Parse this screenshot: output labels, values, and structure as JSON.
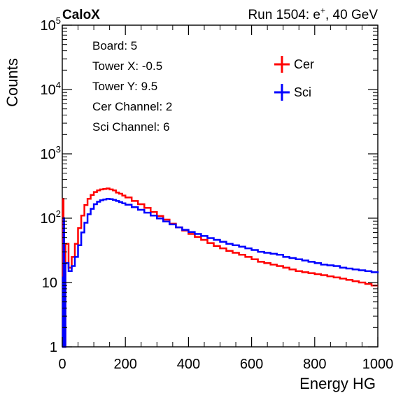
{
  "header": {
    "label_left": "CaloX",
    "run_prefix": "Run 1504: e",
    "run_superscript": "+",
    "run_suffix": ", 40 GeV"
  },
  "info_box": {
    "lines": [
      "Board: 5",
      "Tower X: -0.5",
      "Tower Y: 9.5",
      "Cer Channel: 2",
      "Sci Channel: 6"
    ]
  },
  "chart_data": {
    "type": "line",
    "style": "histogram-step",
    "xlabel": "Energy HG",
    "ylabel": "Counts",
    "xlim": [
      0,
      1000
    ],
    "ylim": [
      1,
      100000
    ],
    "yscale": "log",
    "grid": false,
    "legend_position": "top-right",
    "x_ticks": [
      0,
      200,
      400,
      600,
      800,
      1000
    ],
    "y_tick_values": [
      1,
      10,
      100,
      1000,
      10000,
      100000
    ],
    "y_tick_labels": [
      {
        "base": "1",
        "exp": ""
      },
      {
        "base": "10",
        "exp": ""
      },
      {
        "base": "10",
        "exp": "2"
      },
      {
        "base": "10",
        "exp": "3"
      },
      {
        "base": "10",
        "exp": "4"
      },
      {
        "base": "10",
        "exp": "5"
      }
    ],
    "series": [
      {
        "name": "Cer",
        "color": "#ff0000",
        "x": [
          0,
          2,
          4,
          6,
          10,
          20,
          30,
          40,
          50,
          60,
          70,
          80,
          90,
          100,
          110,
          120,
          130,
          140,
          150,
          160,
          170,
          180,
          190,
          200,
          220,
          240,
          260,
          280,
          300,
          320,
          340,
          360,
          380,
          400,
          420,
          440,
          460,
          480,
          500,
          520,
          540,
          560,
          580,
          600,
          620,
          640,
          660,
          680,
          700,
          720,
          740,
          760,
          780,
          800,
          820,
          840,
          860,
          880,
          900,
          920,
          940,
          960,
          980,
          1000
        ],
        "y": [
          1,
          200,
          90,
          1,
          40,
          17,
          25,
          40,
          70,
          110,
          160,
          200,
          230,
          255,
          270,
          280,
          285,
          290,
          280,
          270,
          250,
          240,
          225,
          210,
          185,
          165,
          145,
          125,
          108,
          95,
          82,
          72,
          64,
          57,
          51,
          46,
          41,
          37,
          34,
          31,
          29,
          27,
          25,
          23,
          21,
          20,
          19,
          18,
          17,
          16,
          15,
          14.5,
          14,
          13.5,
          13,
          12.5,
          12,
          11.5,
          11,
          10.5,
          10,
          9.5,
          9,
          9
        ]
      },
      {
        "name": "Sci",
        "color": "#0000ff",
        "x": [
          0,
          2,
          4,
          6,
          10,
          20,
          30,
          40,
          50,
          60,
          70,
          80,
          90,
          100,
          110,
          120,
          130,
          140,
          150,
          160,
          170,
          180,
          190,
          200,
          220,
          240,
          260,
          280,
          300,
          320,
          340,
          360,
          380,
          400,
          420,
          440,
          460,
          480,
          500,
          520,
          540,
          560,
          580,
          600,
          620,
          640,
          660,
          680,
          700,
          720,
          740,
          760,
          780,
          800,
          820,
          840,
          860,
          880,
          900,
          920,
          940,
          960,
          980,
          1000
        ],
        "y": [
          1,
          12,
          100,
          1,
          20,
          15,
          18,
          25,
          38,
          60,
          85,
          115,
          140,
          165,
          180,
          190,
          195,
          200,
          198,
          192,
          185,
          178,
          170,
          162,
          148,
          135,
          122,
          110,
          99,
          89,
          80,
          72,
          66,
          61,
          57,
          53,
          49,
          46,
          43,
          40,
          38,
          36,
          34,
          32,
          30,
          29,
          28,
          27,
          25,
          24,
          23,
          22,
          21,
          20,
          19,
          18.5,
          18,
          17,
          16.5,
          16,
          15.5,
          15,
          14.5,
          14
        ]
      }
    ]
  }
}
